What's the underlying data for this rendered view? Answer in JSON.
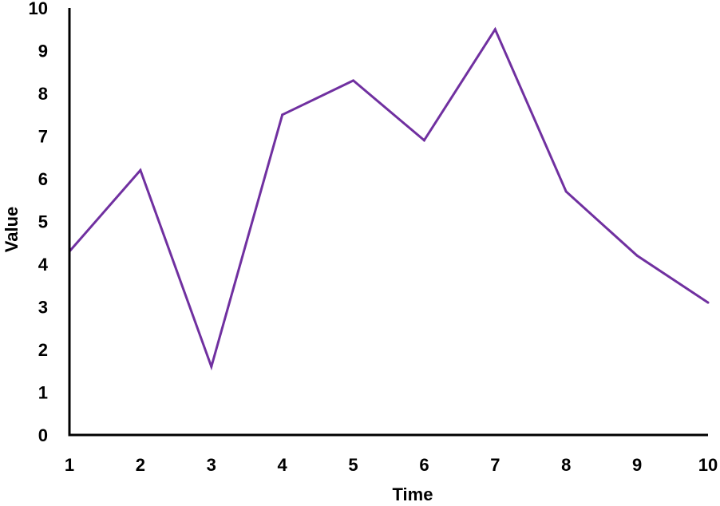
{
  "chart_data": {
    "type": "line",
    "title": "",
    "xlabel": "Time",
    "ylabel": "Value",
    "x": [
      1,
      2,
      3,
      4,
      5,
      6,
      7,
      8,
      9,
      10
    ],
    "xlim": [
      1,
      10
    ],
    "ylim": [
      0,
      10
    ],
    "x_ticks": [
      "1",
      "2",
      "3",
      "4",
      "5",
      "6",
      "7",
      "8",
      "9",
      "10"
    ],
    "y_ticks": [
      "0",
      "1",
      "2",
      "3",
      "4",
      "5",
      "6",
      "7",
      "8",
      "9",
      "10"
    ],
    "grid": false,
    "legend": "none",
    "series": [
      {
        "values": [
          4.3,
          6.2,
          1.6,
          7.5,
          8.3,
          6.9,
          9.5,
          5.7,
          4.2,
          3.1
        ],
        "color": "#7030a0"
      }
    ]
  }
}
